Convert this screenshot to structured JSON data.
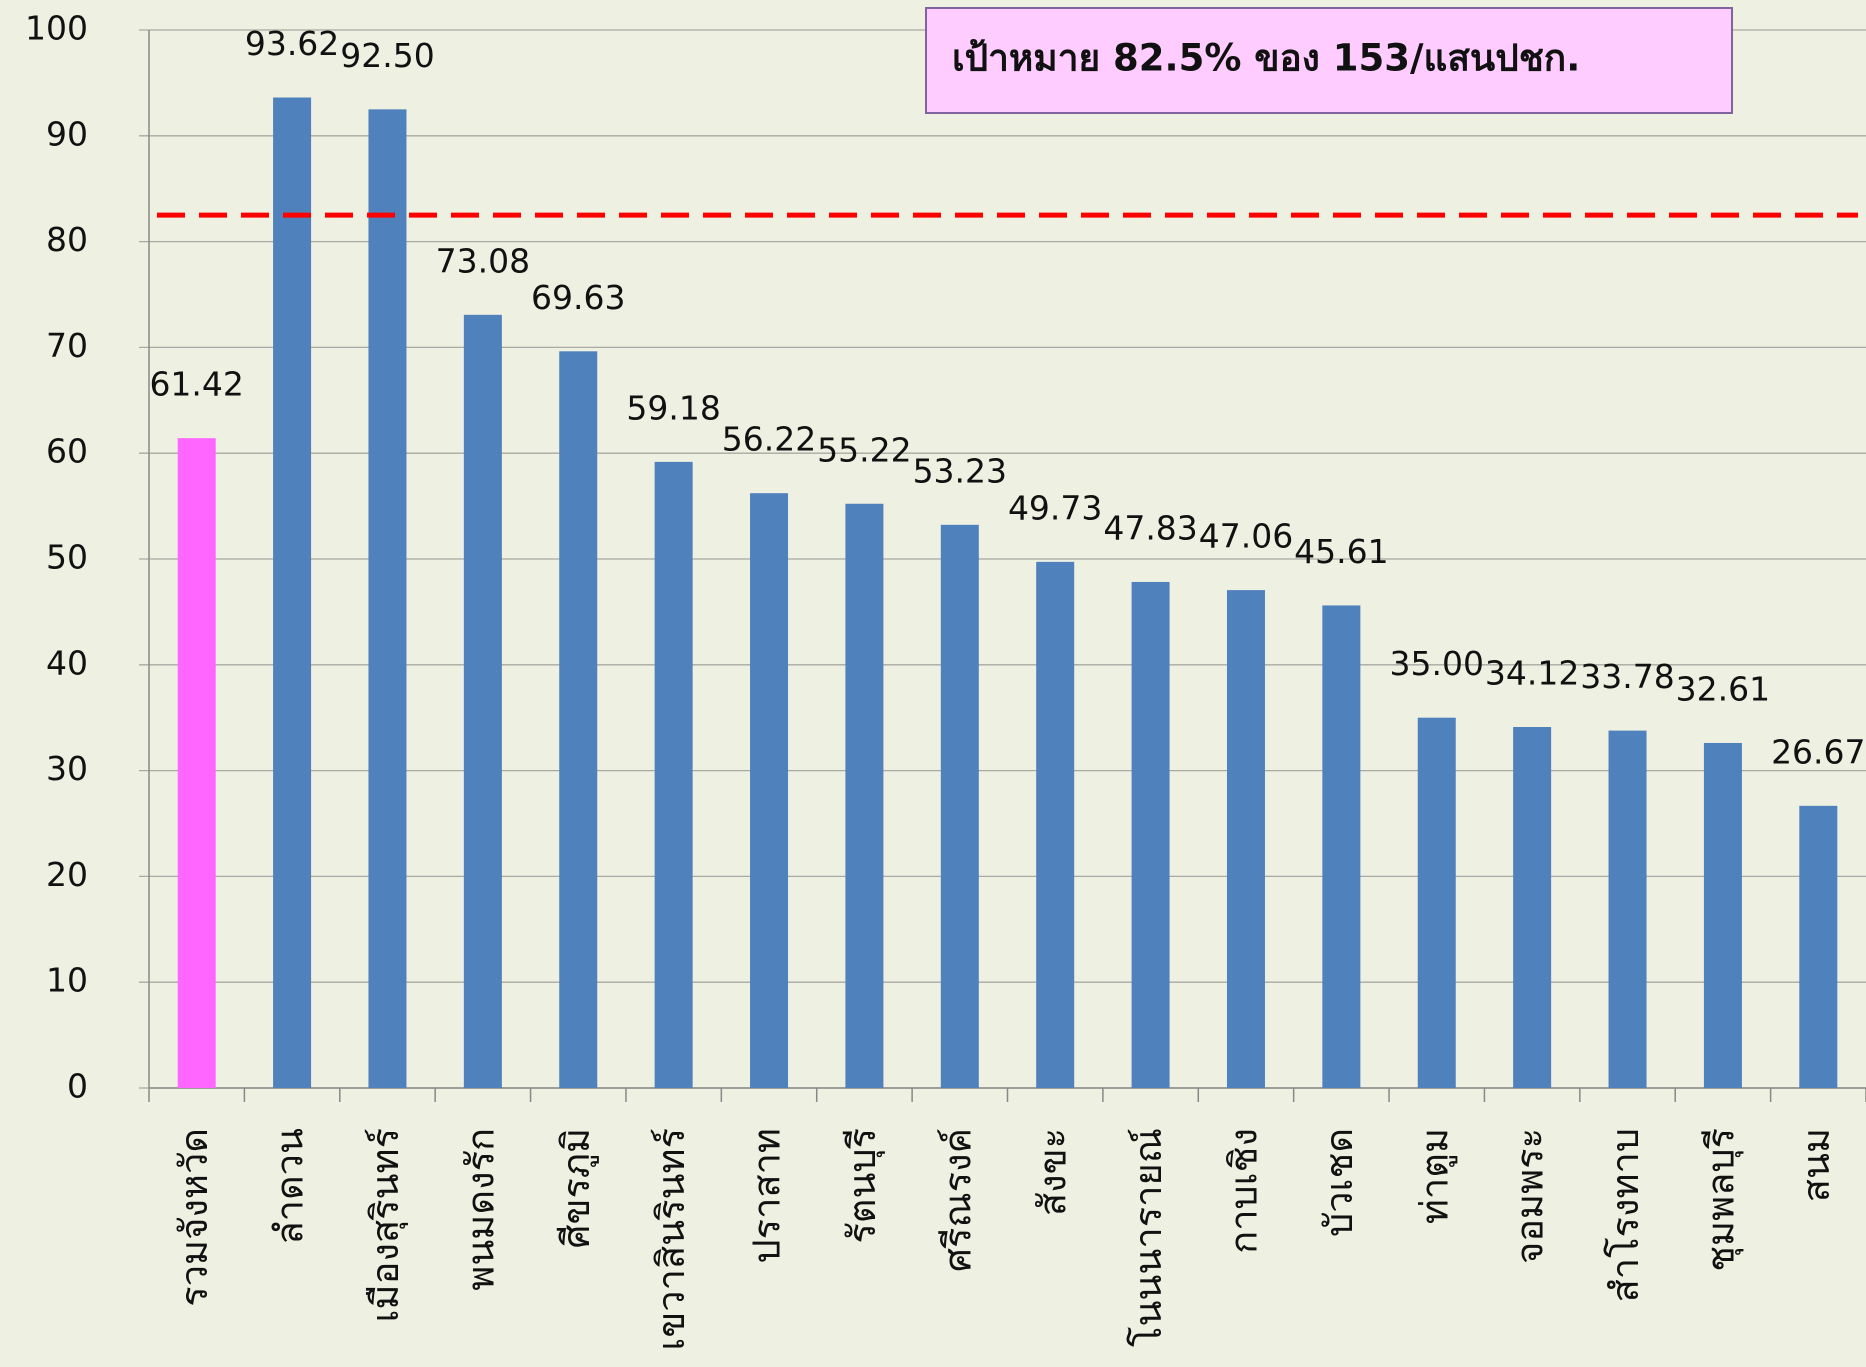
{
  "chart_data": {
    "type": "bar",
    "categories": [
      "รวมจังหวัด",
      "ลำดวน",
      "เมืองสุรินทร์",
      "พนมดงรัก",
      "ศีขรภูมิ",
      "เขวาสินรินทร์",
      "ปราสาท",
      "รัตนบุรี",
      "ศรีณรงค์",
      "สังขะ",
      "โนนนารายณ์",
      "กาบเชิง",
      "บัวเชด",
      "ท่าตูม",
      "จอมพระ",
      "สำโรงทาบ",
      "ชุมพลบุรี",
      "สนม"
    ],
    "values": [
      61.42,
      93.62,
      92.5,
      73.08,
      69.63,
      59.18,
      56.22,
      55.22,
      53.23,
      49.73,
      47.83,
      47.06,
      45.61,
      35,
      34.12,
      33.78,
      32.61,
      26.67
    ],
    "value_labels": [
      "61.42",
      "93.62",
      "92.50",
      "73.08",
      "69.63",
      "59.18",
      "56.22",
      "55.22",
      "53.23",
      "49.73",
      "47.83",
      "47.06",
      "45.61",
      "35.00",
      "34.12",
      "33.78",
      "32.61",
      "26.67"
    ],
    "colors": [
      "#ff66ff",
      "#4f81bd",
      "#4f81bd",
      "#4f81bd",
      "#4f81bd",
      "#4f81bd",
      "#4f81bd",
      "#4f81bd",
      "#4f81bd",
      "#4f81bd",
      "#4f81bd",
      "#4f81bd",
      "#4f81bd",
      "#4f81bd",
      "#4f81bd",
      "#4f81bd",
      "#4f81bd",
      "#4f81bd"
    ],
    "ylim": [
      0,
      100
    ],
    "yticks": [
      0,
      10,
      20,
      30,
      40,
      50,
      60,
      70,
      80,
      90,
      100
    ],
    "grid": true,
    "target": 82.5,
    "target_color": "#ff0000",
    "annotation": "เป้าหมาย 82.5% ของ 153/แสนปชก."
  }
}
